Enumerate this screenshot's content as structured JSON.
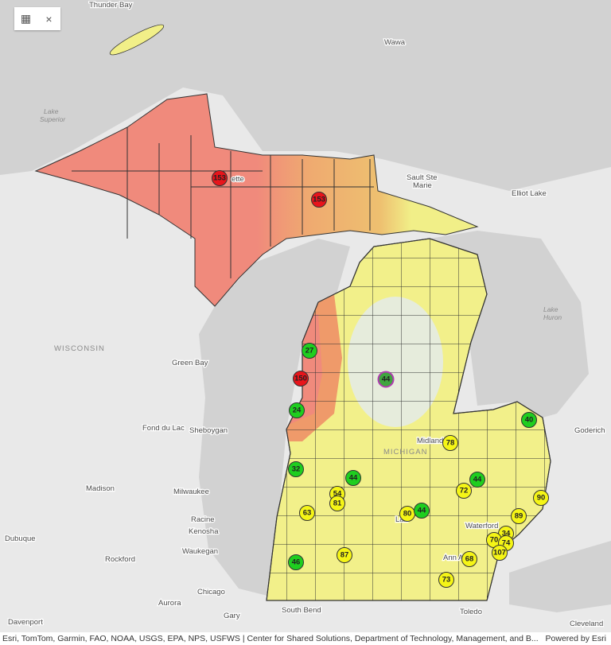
{
  "map": {
    "places": [
      "Thunder Bay",
      "Wawa",
      "Lake",
      "Superior",
      "ette",
      "Sault Ste",
      "Marie",
      "Elliot Lake",
      "WISCONSIN",
      "Green Bay",
      "Lake",
      "Huron",
      "Fond du Lac",
      "Sheboygan",
      "Midland",
      "MICHIGAN",
      "Goderich",
      "Madison",
      "Milwaukee",
      "Racine",
      "Kenosha",
      "Dubuque",
      "Waukegan",
      "Rockford",
      "Chicago",
      "Aurora",
      "Gary",
      "Davenport",
      "South Bend",
      "Toledo",
      "Cleveland",
      "Waterford",
      "Ann A",
      "Lan"
    ],
    "stations": [
      {
        "value": 153,
        "color": "#e8141b"
      },
      {
        "value": 153,
        "color": "#e8141b"
      },
      {
        "value": 27,
        "color": "#1fce1f"
      },
      {
        "value": 150,
        "color": "#e8141b"
      },
      {
        "value": 44,
        "color": "#3fa53f"
      },
      {
        "value": 24,
        "color": "#1fce1f"
      },
      {
        "value": 40,
        "color": "#1fce1f"
      },
      {
        "value": 78,
        "color": "#f5f516"
      },
      {
        "value": 32,
        "color": "#1fce1f"
      },
      {
        "value": 44,
        "color": "#1fce1f"
      },
      {
        "value": 54,
        "color": "#f5f516"
      },
      {
        "value": 81,
        "color": "#f5f516"
      },
      {
        "value": 44,
        "color": "#1fce1f"
      },
      {
        "value": 72,
        "color": "#f5f516"
      },
      {
        "value": 90,
        "color": "#f5f516"
      },
      {
        "value": 63,
        "color": "#f5f516"
      },
      {
        "value": 80,
        "color": "#f5f516"
      },
      {
        "value": 44,
        "color": "#1fce1f"
      },
      {
        "value": 89,
        "color": "#f5f516"
      },
      {
        "value": 34,
        "color": "#f5f516"
      },
      {
        "value": 70,
        "color": "#f5f516"
      },
      {
        "value": 74,
        "color": "#f5f516"
      },
      {
        "value": 107,
        "color": "#f5f516"
      },
      {
        "value": 46,
        "color": "#1fce1f"
      },
      {
        "value": 87,
        "color": "#f5f516"
      },
      {
        "value": 68,
        "color": "#f5f516"
      },
      {
        "value": 73,
        "color": "#f5f516"
      }
    ]
  },
  "attribution": "Esri, TomTom, Garmin, FAO, NOAA, USGS, EPA, NPS, USFWS | Center for Shared Solutions, Department of Technology, Management, and B...",
  "powered_by": "Powered by Esri"
}
